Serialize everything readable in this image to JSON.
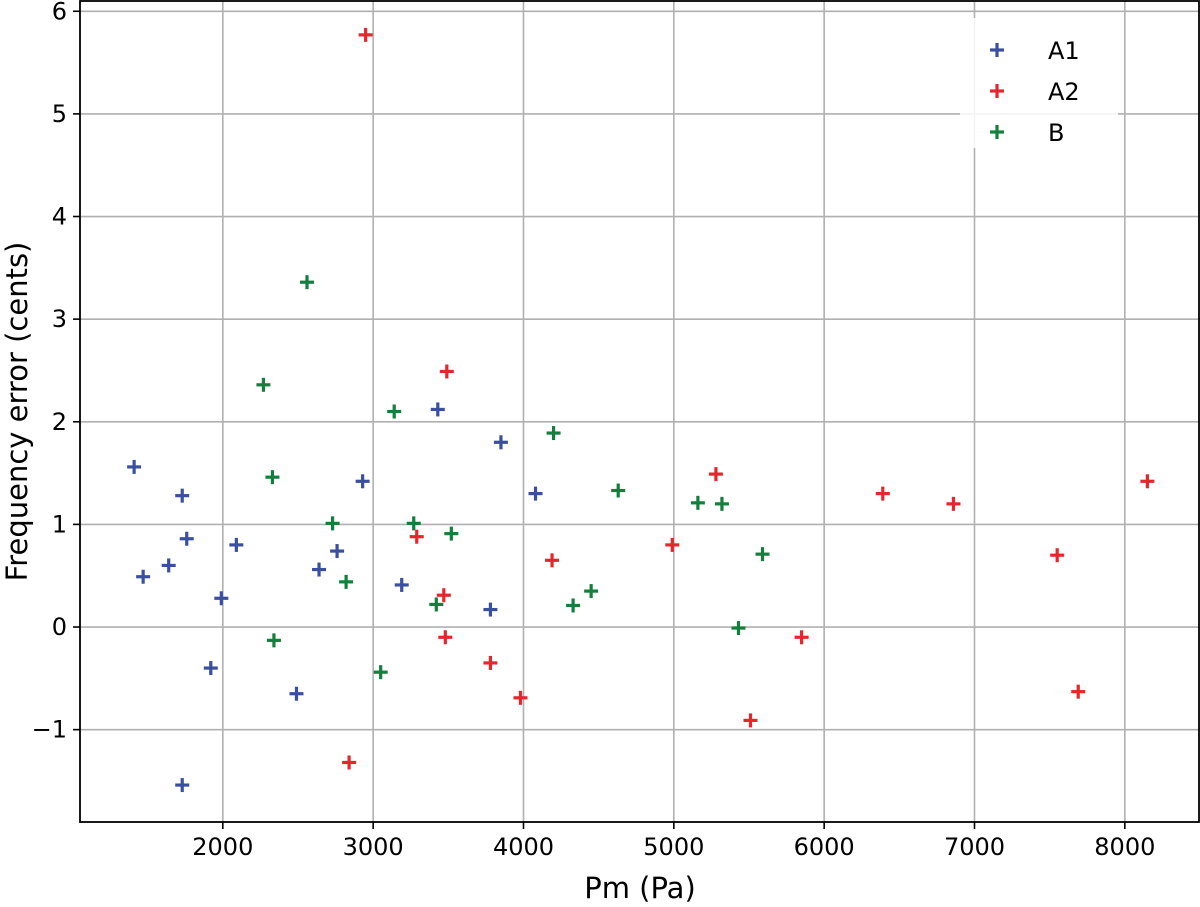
{
  "chart_data": {
    "type": "scatter",
    "title": "",
    "xlabel": "Pm (Pa)",
    "ylabel": "Frequency error (cents)",
    "xlim": [
      1050,
      8500
    ],
    "ylim": [
      -1.9,
      6.1
    ],
    "x_ticks": [
      2000,
      3000,
      4000,
      5000,
      6000,
      7000,
      8000
    ],
    "y_ticks": [
      -1,
      0,
      1,
      2,
      3,
      4,
      5,
      6
    ],
    "x_tick_labels": [
      "2000",
      "3000",
      "4000",
      "5000",
      "6000",
      "7000",
      "8000"
    ],
    "y_tick_labels": [
      "−1",
      "0",
      "1",
      "2",
      "3",
      "4",
      "5",
      "6"
    ],
    "grid": true,
    "legend_position": "top-right",
    "marker": "+",
    "series": [
      {
        "name": "A1",
        "color": "#3a4fa0",
        "points": [
          [
            1410,
            1.56
          ],
          [
            1470,
            0.49
          ],
          [
            1640,
            0.6
          ],
          [
            1730,
            1.28
          ],
          [
            1760,
            0.86
          ],
          [
            1730,
            -1.54
          ],
          [
            1920,
            -0.4
          ],
          [
            1990,
            0.28
          ],
          [
            2090,
            0.8
          ],
          [
            2490,
            -0.65
          ],
          [
            2640,
            0.56
          ],
          [
            2760,
            0.74
          ],
          [
            2930,
            1.42
          ],
          [
            3190,
            0.41
          ],
          [
            3430,
            2.12
          ],
          [
            3780,
            0.17
          ],
          [
            3850,
            1.8
          ],
          [
            4080,
            1.3
          ]
        ]
      },
      {
        "name": "A2",
        "color": "#e6262d",
        "points": [
          [
            2950,
            5.77
          ],
          [
            2840,
            -1.32
          ],
          [
            3290,
            0.88
          ],
          [
            3470,
            0.31
          ],
          [
            3480,
            -0.1
          ],
          [
            3490,
            2.49
          ],
          [
            3780,
            -0.35
          ],
          [
            3980,
            -0.69
          ],
          [
            4190,
            0.65
          ],
          [
            4990,
            0.8
          ],
          [
            5280,
            1.49
          ],
          [
            5510,
            -0.91
          ],
          [
            5850,
            -0.1
          ],
          [
            6390,
            1.3
          ],
          [
            6860,
            1.2
          ],
          [
            7550,
            0.7
          ],
          [
            7690,
            -0.63
          ],
          [
            8150,
            1.42
          ]
        ]
      },
      {
        "name": "B",
        "color": "#12803c",
        "points": [
          [
            2270,
            2.36
          ],
          [
            2330,
            1.46
          ],
          [
            2340,
            -0.13
          ],
          [
            2560,
            3.36
          ],
          [
            2730,
            1.01
          ],
          [
            2820,
            0.44
          ],
          [
            3050,
            -0.44
          ],
          [
            3140,
            2.1
          ],
          [
            3270,
            1.01
          ],
          [
            3420,
            0.22
          ],
          [
            3520,
            0.91
          ],
          [
            4200,
            1.89
          ],
          [
            4330,
            0.21
          ],
          [
            4450,
            0.35
          ],
          [
            4630,
            1.33
          ],
          [
            5160,
            1.21
          ],
          [
            5320,
            1.2
          ],
          [
            5430,
            -0.01
          ],
          [
            5590,
            0.71
          ]
        ]
      }
    ]
  }
}
